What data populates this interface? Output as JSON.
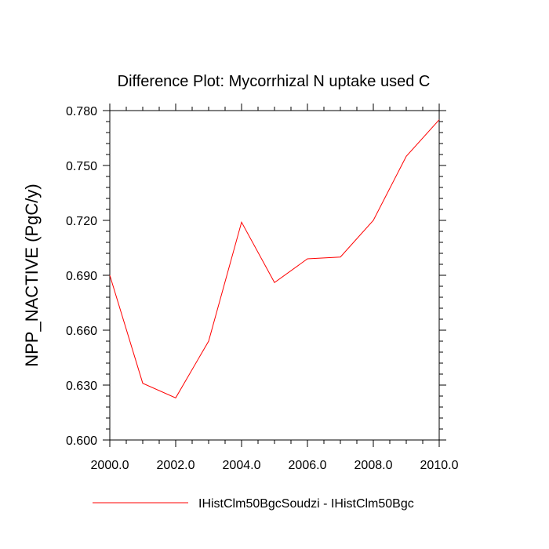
{
  "chart_data": {
    "type": "line",
    "title": "Difference Plot: Mycorrhizal N uptake used C",
    "xlabel": "",
    "ylabel": "NPP_NACTIVE  (PgC/y)",
    "xlim": [
      2000.0,
      2010.0
    ],
    "ylim": [
      0.6,
      0.78
    ],
    "xticks": [
      2000.0,
      2002.0,
      2004.0,
      2006.0,
      2008.0,
      2010.0
    ],
    "xtick_labels": [
      "2000.0",
      "2002.0",
      "2004.0",
      "2006.0",
      "2008.0",
      "2010.0"
    ],
    "yticks": [
      0.6,
      0.63,
      0.66,
      0.69,
      0.72,
      0.75,
      0.78
    ],
    "ytick_labels": [
      "0.600",
      "0.630",
      "0.660",
      "0.690",
      "0.720",
      "0.750",
      "0.780"
    ],
    "grid": false,
    "legend_position": "bottom",
    "series": [
      {
        "name": "IHistClm50BgcSoudzi - IHistClm50Bgc",
        "color": "#ff0000",
        "x": [
          2000,
          2001,
          2002,
          2003,
          2004,
          2005,
          2006,
          2007,
          2008,
          2009,
          2010
        ],
        "y": [
          0.69,
          0.631,
          0.623,
          0.654,
          0.719,
          0.686,
          0.699,
          0.7,
          0.72,
          0.755,
          0.775
        ]
      }
    ]
  }
}
